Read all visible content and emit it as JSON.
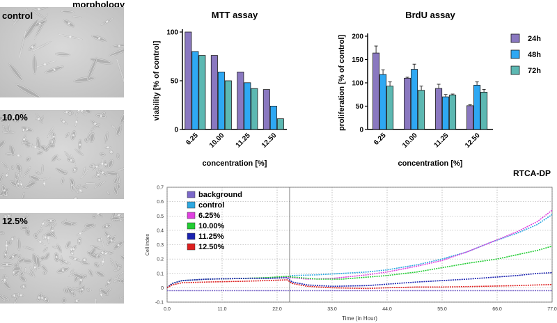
{
  "morphology": {
    "title": "morphology",
    "panels": [
      {
        "label": "control",
        "density": 28,
        "seed": 3,
        "elongated": 0.85
      },
      {
        "label": "10.0%",
        "density": 120,
        "seed": 11,
        "elongated": 0.6
      },
      {
        "label": "12.5%",
        "density": 150,
        "seed": 29,
        "elongated": 0.35
      }
    ]
  },
  "chart_data": [
    {
      "type": "bar",
      "title": "MTT assay",
      "ylabel": "viability [% of control]",
      "xlabel": "concentration [%]",
      "ylim": [
        0,
        100
      ],
      "yticks": [
        0,
        50,
        100
      ],
      "categories": [
        "6.25",
        "10.00",
        "11.25",
        "12.50"
      ],
      "series": [
        {
          "name": "24h",
          "color": "#8a78c0",
          "values": [
            100,
            76,
            59,
            41
          ]
        },
        {
          "name": "48h",
          "color": "#2ea8f3",
          "values": [
            80,
            59,
            48,
            24
          ]
        },
        {
          "name": "72h",
          "color": "#5cb8b2",
          "values": [
            76,
            50,
            42,
            11
          ]
        }
      ]
    },
    {
      "type": "bar",
      "title": "BrdU assay",
      "ylabel": "proliferation [% of control]",
      "xlabel": "concentration [%]",
      "ylim": [
        0,
        200
      ],
      "yticks": [
        0,
        50,
        100,
        150,
        200
      ],
      "categories": [
        "6.25",
        "10.00",
        "11.25",
        "12.50"
      ],
      "legend_position": "right",
      "series": [
        {
          "name": "24h",
          "color": "#8a78c0",
          "values": [
            164,
            110,
            88,
            51
          ],
          "errors": [
            15,
            2,
            9,
            2
          ]
        },
        {
          "name": "48h",
          "color": "#2ea8f3",
          "values": [
            118,
            129,
            70,
            95
          ],
          "errors": [
            10,
            11,
            5,
            7
          ]
        },
        {
          "name": "72h",
          "color": "#5cb8b2",
          "values": [
            93,
            84,
            74,
            80
          ],
          "errors": [
            9,
            9,
            2,
            6
          ]
        }
      ]
    },
    {
      "type": "line",
      "title": "RTCA-DP",
      "xlabel": "Time (in Hour)",
      "ylabel": "Cell Index",
      "xlim": [
        0,
        77
      ],
      "ylim": [
        -0.1,
        0.7
      ],
      "xticks": [
        "0.0",
        "11.0",
        "22.0",
        "33.0",
        "44.0",
        "55.0",
        "66.0",
        "77.0"
      ],
      "yticks": [
        "-0.1",
        "0",
        "0.1",
        "0.2",
        "0.3",
        "0.4",
        "0.5",
        "0.6",
        "0.7"
      ],
      "grid": true,
      "legend_position": "top-left",
      "series": [
        {
          "name": "background",
          "color": "#7b68c9",
          "points": [
            [
              0,
              -0.02
            ],
            [
              2,
              -0.02
            ],
            [
              5,
              -0.02
            ],
            [
              10,
              -0.02
            ],
            [
              15,
              -0.02
            ],
            [
              20,
              -0.02
            ],
            [
              24,
              -0.02
            ],
            [
              26,
              -0.02
            ],
            [
              33,
              -0.02
            ],
            [
              40,
              -0.02
            ],
            [
              50,
              -0.02
            ],
            [
              60,
              -0.02
            ],
            [
              70,
              -0.02
            ],
            [
              77,
              -0.02
            ]
          ]
        },
        {
          "name": "control",
          "color": "#2ea8e0",
          "points": [
            [
              0,
              0.0
            ],
            [
              1,
              0.03
            ],
            [
              3,
              0.05
            ],
            [
              8,
              0.06
            ],
            [
              15,
              0.065
            ],
            [
              20,
              0.07
            ],
            [
              24,
              0.075
            ],
            [
              25,
              0.085
            ],
            [
              30,
              0.09
            ],
            [
              35,
              0.1
            ],
            [
              40,
              0.11
            ],
            [
              44,
              0.125
            ],
            [
              50,
              0.16
            ],
            [
              55,
              0.2
            ],
            [
              60,
              0.25
            ],
            [
              65,
              0.32
            ],
            [
              70,
              0.38
            ],
            [
              74,
              0.44
            ],
            [
              77,
              0.51
            ]
          ]
        },
        {
          "name": "6.25%",
          "color": "#e040e0",
          "points": [
            [
              0,
              0.0
            ],
            [
              1,
              0.03
            ],
            [
              3,
              0.05
            ],
            [
              8,
              0.06
            ],
            [
              15,
              0.065
            ],
            [
              20,
              0.07
            ],
            [
              24,
              0.075
            ],
            [
              25,
              0.07
            ],
            [
              28,
              0.06
            ],
            [
              33,
              0.065
            ],
            [
              40,
              0.09
            ],
            [
              44,
              0.11
            ],
            [
              50,
              0.15
            ],
            [
              55,
              0.19
            ],
            [
              60,
              0.25
            ],
            [
              65,
              0.32
            ],
            [
              70,
              0.39
            ],
            [
              74,
              0.46
            ],
            [
              77,
              0.54
            ]
          ]
        },
        {
          "name": "10.00%",
          "color": "#22cc33",
          "points": [
            [
              0,
              0.0
            ],
            [
              1,
              0.03
            ],
            [
              3,
              0.05
            ],
            [
              8,
              0.06
            ],
            [
              15,
              0.065
            ],
            [
              20,
              0.07
            ],
            [
              24,
              0.08
            ],
            [
              25,
              0.075
            ],
            [
              30,
              0.06
            ],
            [
              35,
              0.06
            ],
            [
              44,
              0.085
            ],
            [
              50,
              0.11
            ],
            [
              55,
              0.14
            ],
            [
              60,
              0.17
            ],
            [
              66,
              0.2
            ],
            [
              70,
              0.23
            ],
            [
              74,
              0.26
            ],
            [
              77,
              0.29
            ]
          ]
        },
        {
          "name": "11.25%",
          "color": "#1a22b0",
          "points": [
            [
              0,
              0.0
            ],
            [
              1,
              0.03
            ],
            [
              3,
              0.05
            ],
            [
              8,
              0.06
            ],
            [
              15,
              0.065
            ],
            [
              20,
              0.065
            ],
            [
              24,
              0.07
            ],
            [
              25,
              0.04
            ],
            [
              28,
              0.02
            ],
            [
              33,
              0.01
            ],
            [
              40,
              0.015
            ],
            [
              44,
              0.025
            ],
            [
              50,
              0.04
            ],
            [
              55,
              0.05
            ],
            [
              60,
              0.06
            ],
            [
              66,
              0.075
            ],
            [
              70,
              0.085
            ],
            [
              74,
              0.1
            ],
            [
              77,
              0.105
            ]
          ]
        },
        {
          "name": "12.50%",
          "color": "#dd1f1f",
          "points": [
            [
              0,
              0.0
            ],
            [
              1,
              0.02
            ],
            [
              3,
              0.035
            ],
            [
              8,
              0.04
            ],
            [
              15,
              0.045
            ],
            [
              20,
              0.05
            ],
            [
              24,
              0.055
            ],
            [
              25,
              0.03
            ],
            [
              28,
              0.01
            ],
            [
              33,
              0.0
            ],
            [
              40,
              -0.005
            ],
            [
              44,
              0.0
            ],
            [
              50,
              0.005
            ],
            [
              55,
              0.005
            ],
            [
              60,
              0.008
            ],
            [
              66,
              0.012
            ],
            [
              70,
              0.015
            ],
            [
              74,
              0.02
            ],
            [
              77,
              0.022
            ]
          ]
        }
      ]
    }
  ]
}
